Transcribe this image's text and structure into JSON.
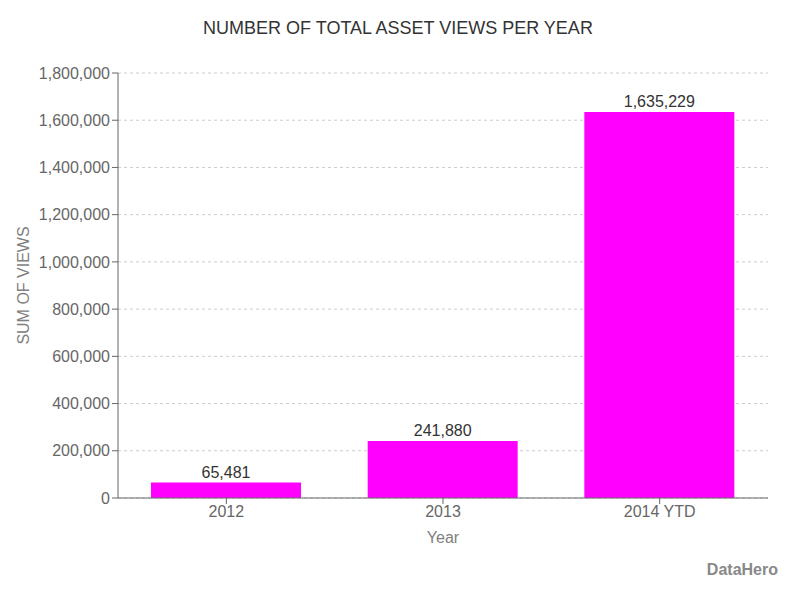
{
  "chart_data": {
    "type": "bar",
    "title": "NUMBER OF TOTAL ASSET VIEWS PER YEAR",
    "x_label": "Year",
    "y_label": "SUM OF VIEWS",
    "categories": [
      "2012",
      "2013",
      "2014 YTD"
    ],
    "values": [
      65481,
      241880,
      1635229
    ],
    "value_labels": [
      "65,481",
      "241,880",
      "1,635,229"
    ],
    "data_labels": true,
    "color": "#FF00FF",
    "ylim": [
      0,
      1800000
    ],
    "yticks": [
      0,
      {
        "value": 200000,
        "label": "200,000"
      },
      {
        "value": 400000,
        "label": "400,000"
      },
      {
        "value": 600000,
        "label": "600,000"
      },
      {
        "value": 800000,
        "label": "800,000"
      },
      {
        "value": 1000000,
        "label": "1,000,000"
      },
      {
        "value": 1200000,
        "label": "1,200,000"
      },
      {
        "value": 1400000,
        "label": "1,400,000"
      },
      {
        "value": 1600000,
        "label": "1,600,000"
      },
      {
        "value": 1800000,
        "label": "1,800,000"
      }
    ],
    "grid": "y",
    "annotations": [
      "DataHero"
    ]
  }
}
